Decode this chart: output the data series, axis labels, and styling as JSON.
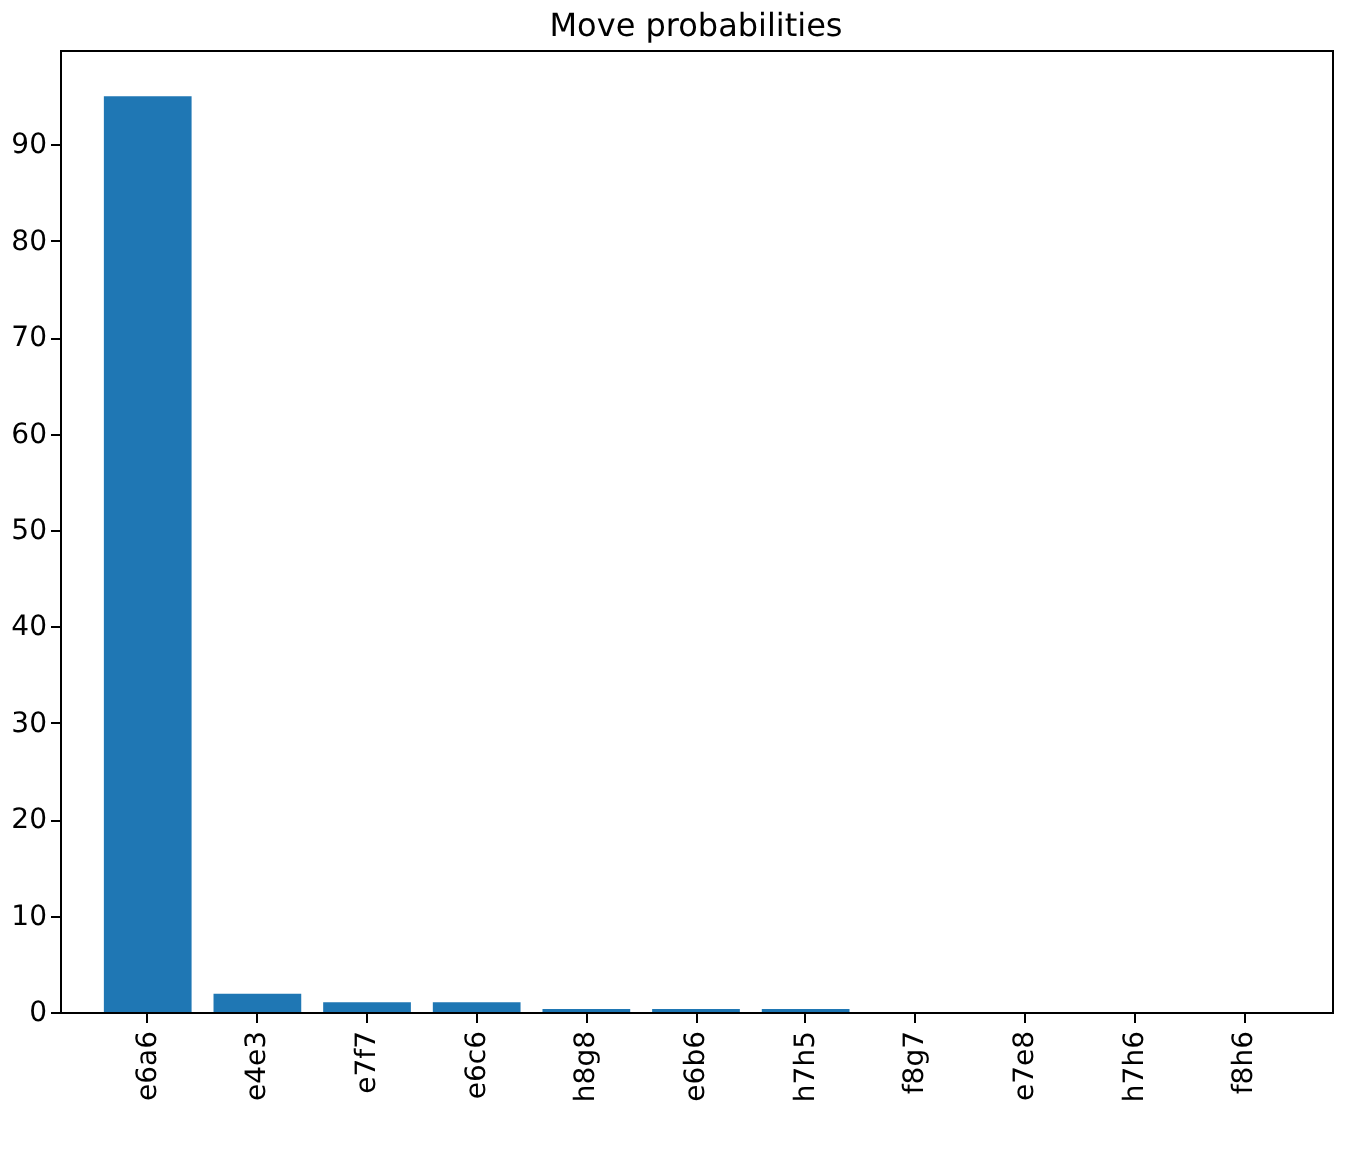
{
  "chart_data": {
    "type": "bar",
    "title": "Move probabilities",
    "categories": [
      "e6a6",
      "e4e3",
      "e7f7",
      "e6c6",
      "h8g8",
      "e6b6",
      "h7h5",
      "f8g7",
      "e7e8",
      "h7h6",
      "f8h6"
    ],
    "values": [
      95,
      1.9,
      1,
      1,
      0.3,
      0.3,
      0.3,
      0,
      0,
      0,
      0
    ],
    "color": "#1f77b4",
    "ylim": [
      0,
      99.8
    ],
    "yticks": [
      0,
      10,
      20,
      30,
      40,
      50,
      60,
      70,
      80,
      90
    ],
    "grid": false
  }
}
